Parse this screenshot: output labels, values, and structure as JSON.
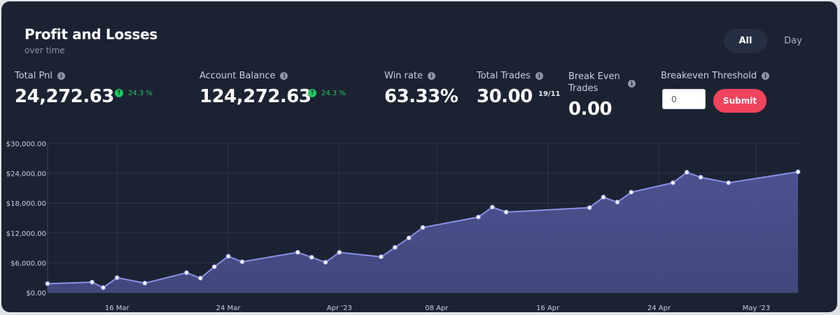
{
  "header": {
    "title": "Profit and Losses",
    "subtitle": "over time",
    "range_tabs": [
      {
        "label": "All",
        "selected": true
      },
      {
        "label": "Day",
        "selected": false
      }
    ]
  },
  "stats": {
    "total_pnl": {
      "label": "Total Pnl",
      "value": "24,272.63",
      "change": "24.3 %"
    },
    "account_balance": {
      "label": "Account Balance",
      "value": "124,272.63",
      "change": "24.3 %"
    },
    "win_rate": {
      "label": "Win rate",
      "value": "63.33%"
    },
    "total_trades": {
      "label": "Total Trades",
      "value": "30.00",
      "ratio": "19/11"
    },
    "break_even_trades": {
      "label_line1": "Break Even",
      "label_line2": "Trades",
      "value": "0.00"
    },
    "breakeven_threshold": {
      "label": "Breakeven Threshold",
      "input_value": "0",
      "submit_label": "Submit"
    }
  },
  "colors": {
    "background": "#1b2333",
    "positive": "#22c55e",
    "submit": "#f0445d",
    "line": "#8c90e6",
    "area": "#4e5494"
  },
  "icons": {
    "info": "info-icon",
    "up": "arrow-up-circle-icon"
  },
  "chart_data": {
    "type": "area",
    "title": "",
    "xlabel": "",
    "ylabel": "",
    "x_ticks": [
      "16 Mar",
      "24 Mar",
      "Apr '23",
      "08 Apr",
      "16 Apr",
      "24 Apr",
      "May '23"
    ],
    "y_ticks": [
      "$0.00",
      "$6,000.00",
      "$12,000.00",
      "$18,000.00",
      "$24,000.00",
      "$30,000.00"
    ],
    "ylim": [
      0,
      30000
    ],
    "xlim": [
      "2023-03-11",
      "2023-05-04"
    ],
    "grid": true,
    "series": [
      {
        "x": [
          "2023-03-11",
          "2023-03-14.2",
          "2023-03-15",
          "2023-03-16",
          "2023-03-18",
          "2023-03-21",
          "2023-03-22",
          "2023-03-23",
          "2023-03-24",
          "2023-03-25",
          "2023-03-29",
          "2023-03-30",
          "2023-03-31",
          "2023-04-01",
          "2023-04-04",
          "2023-04-05",
          "2023-04-06",
          "2023-04-07",
          "2023-04-11",
          "2023-04-12",
          "2023-04-13",
          "2023-04-19",
          "2023-04-20",
          "2023-04-21",
          "2023-04-22",
          "2023-04-25",
          "2023-04-26",
          "2023-04-27",
          "2023-04-29",
          "2023-05-04"
        ],
        "values": [
          1800,
          2100,
          1000,
          3000,
          1900,
          4000,
          2900,
          5200,
          7300,
          6200,
          8100,
          7100,
          6100,
          8100,
          7200,
          9100,
          11000,
          13100,
          15200,
          17200,
          16200,
          17100,
          19200,
          18200,
          20200,
          22100,
          24200,
          23200,
          22100,
          24300
        ]
      }
    ]
  }
}
